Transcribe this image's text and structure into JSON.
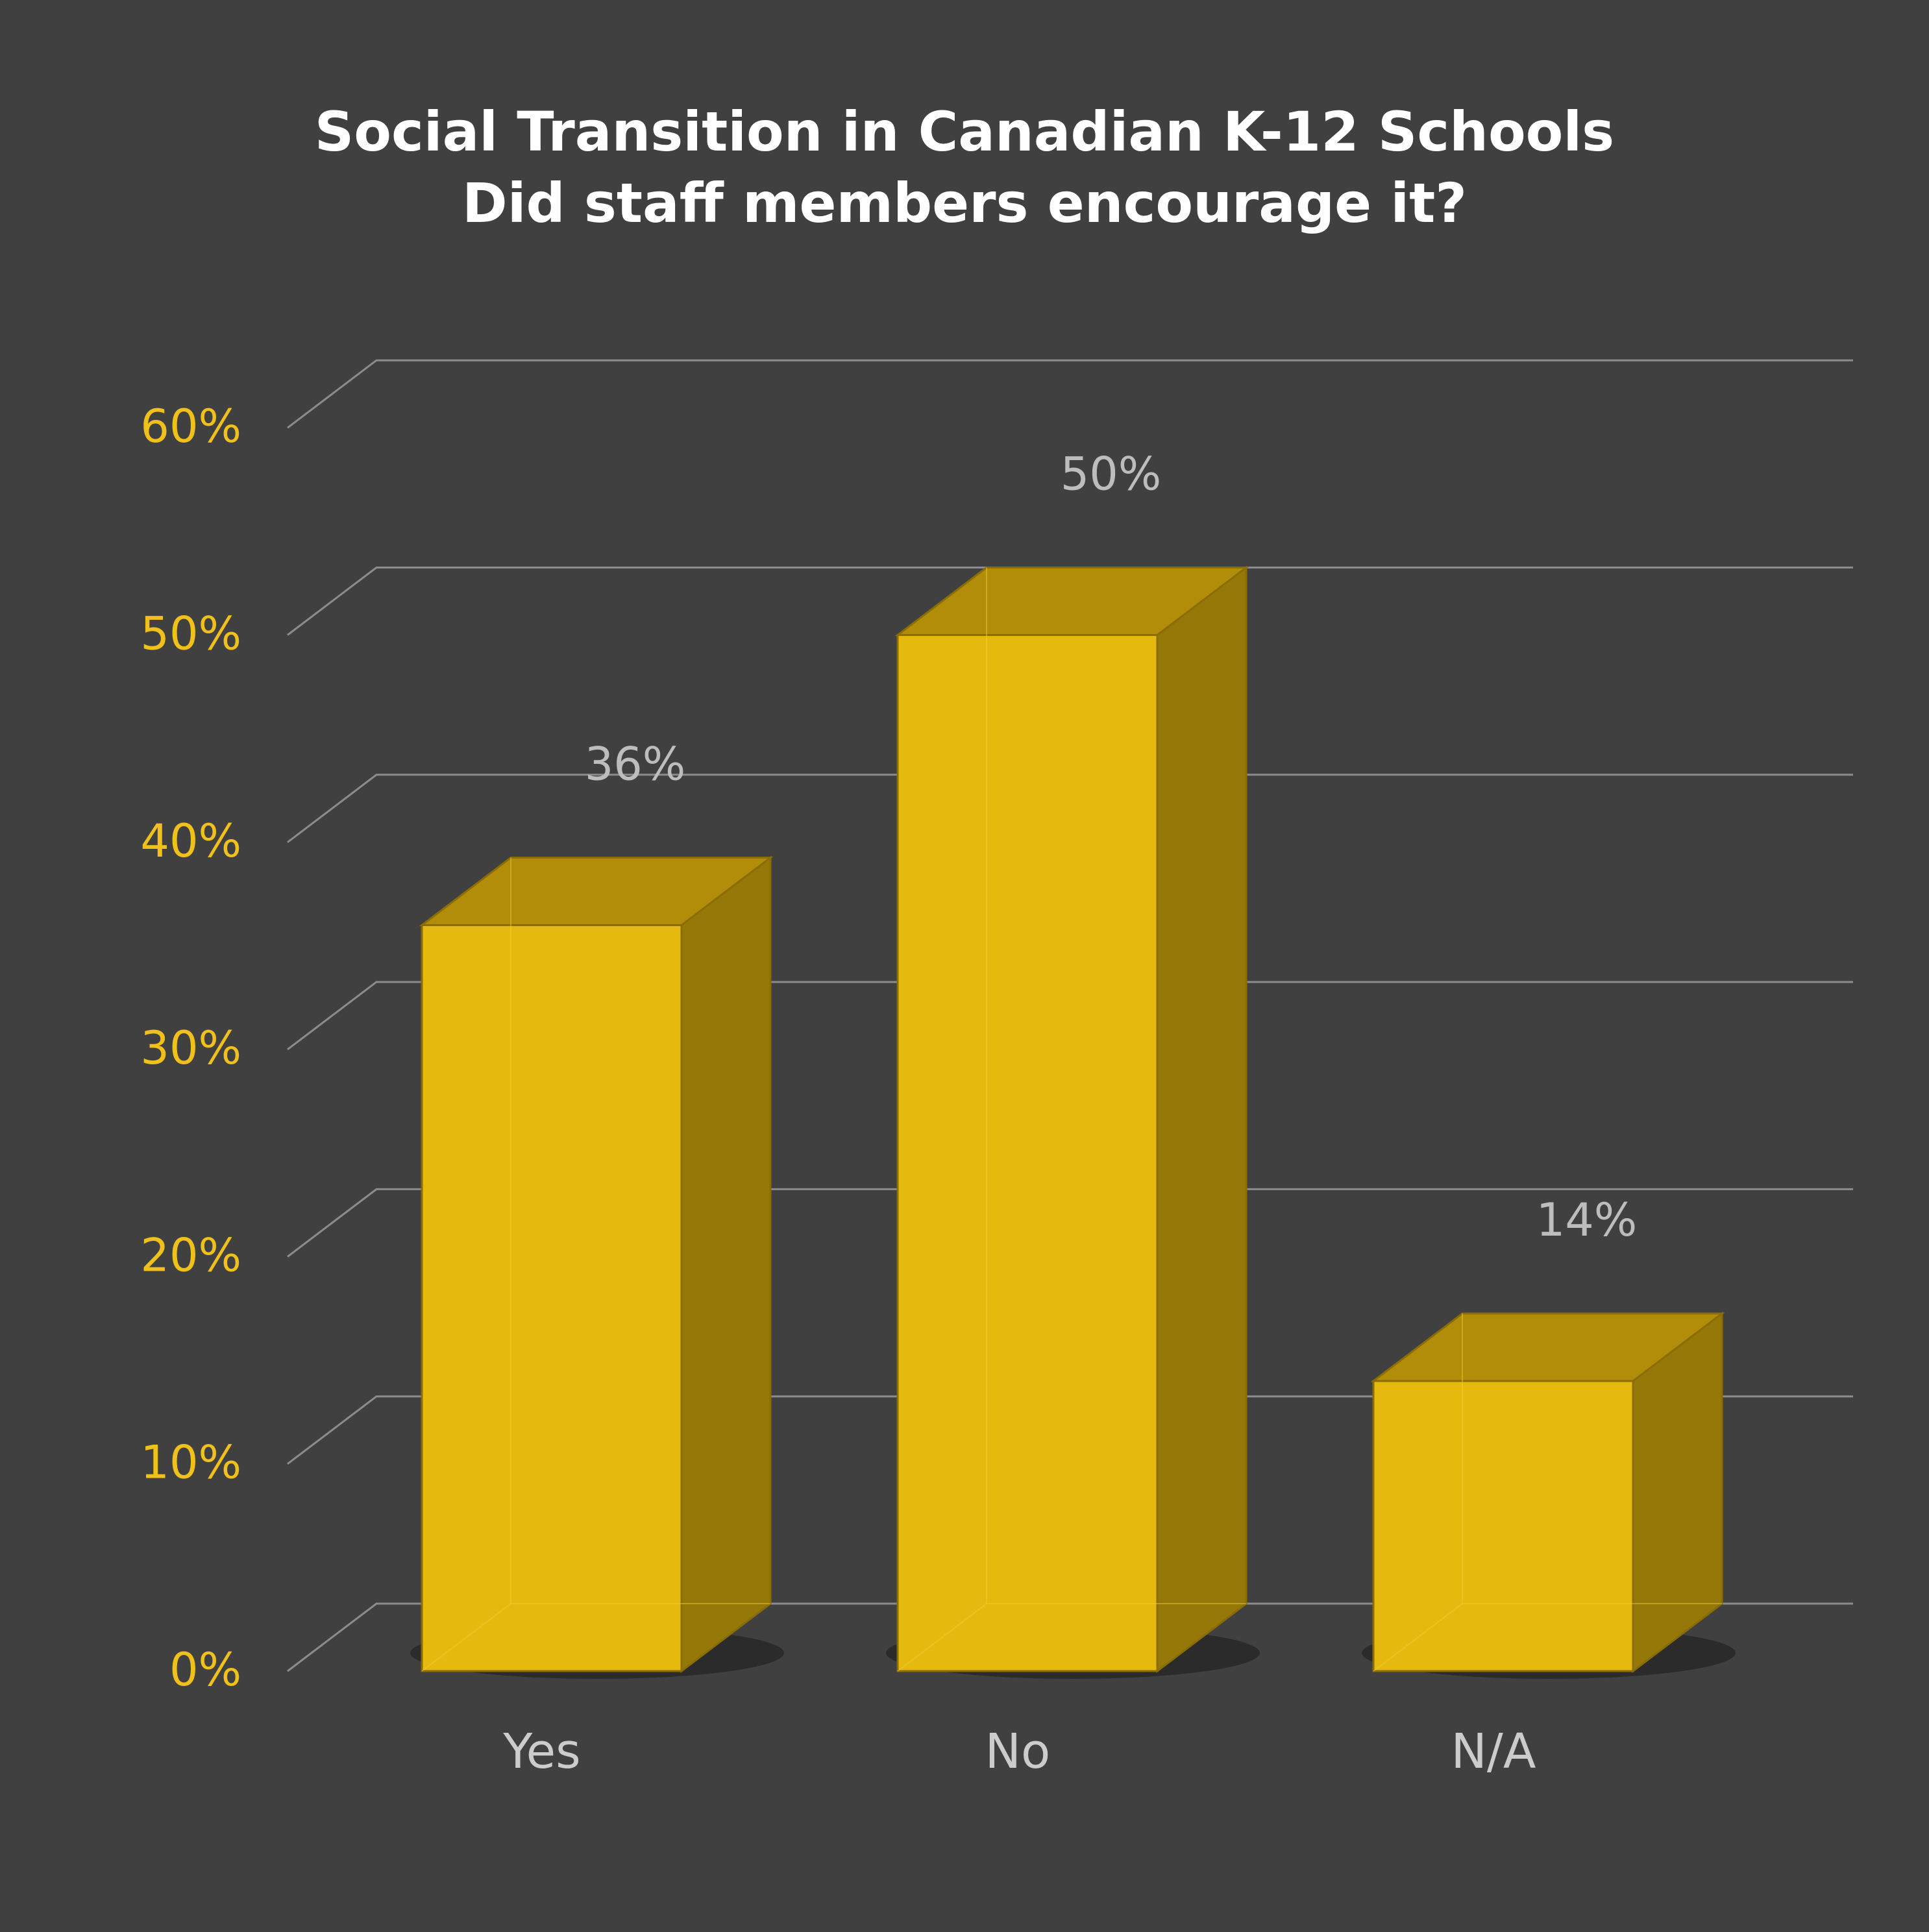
{
  "chart_data": {
    "type": "bar",
    "title_lines": [
      "Social Transition in Canadian K-12 Schools",
      "Did staff members encourage it?"
    ],
    "categories": [
      "Yes",
      "No",
      "N/A"
    ],
    "values": [
      36,
      50,
      14
    ],
    "value_labels": [
      "36%",
      "50%",
      "14%"
    ],
    "y_ticks": [
      0,
      10,
      20,
      30,
      40,
      50,
      60
    ],
    "y_tick_labels": [
      "0%",
      "10%",
      "20%",
      "30%",
      "40%",
      "50%",
      "60%"
    ],
    "ylim": [
      0,
      60
    ],
    "grid": true,
    "style": "3d",
    "colors": {
      "background": "#404040",
      "bar_front": "#e6b90e",
      "bar_top": "#b28d09",
      "bar_side": "#957807",
      "bar_edge": "#8a6d05",
      "grid": "#8c8c8c",
      "tick_label": "#f0c11b",
      "category_label": "#cccccc",
      "value_label": "#bdbdbd",
      "title": "#ffffff"
    }
  }
}
